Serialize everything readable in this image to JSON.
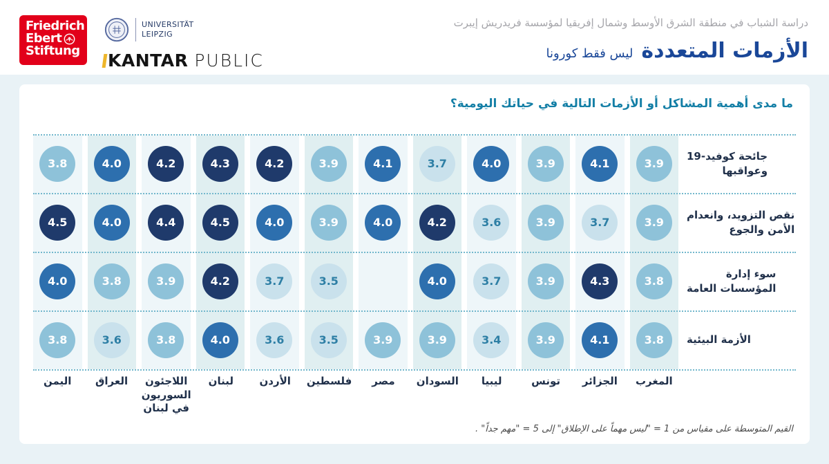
{
  "page": {
    "background": "#e9f2f6",
    "card_background": "#ffffff"
  },
  "header": {
    "fes_logo": {
      "line1": "Friedrich",
      "line2": "Ebert",
      "line3": "Stiftung",
      "bg_color": "#e2001a"
    },
    "leipzig_logo": {
      "line1": "UNIVERSITÄT",
      "line2": "LEIPZIG"
    },
    "kantar_logo": {
      "word1": "KANTAR",
      "word2": "PUBLIC",
      "accent_color": "#eeb62b"
    },
    "study_line": "دراسة الشباب في منطقة الشرق الأوسط وشمال إفريقيا لمؤسسة فريدريش إيبرت",
    "title": "الأزمات المتعددة",
    "subtitle": "ليس فقط كورونا",
    "title_color": "#1a4798"
  },
  "chart_data": {
    "type": "heatmap",
    "title": "ما مدى أهمية المشاكل أو الأزمات التالية في حياتك اليومية؟",
    "title_color": "#147fa6",
    "column_order": "visual-left-to-right",
    "columns": [
      "اليمن",
      "العراق",
      "اللاجئون\nالسوريون\nفي لبنان",
      "لبنان",
      "الأردن",
      "فلسطين",
      "مصر",
      "السودان",
      "ليبيا",
      "تونس",
      "الجزائر",
      "المغرب"
    ],
    "rows": [
      {
        "label": "جائحة كوفيد-19\nوعواقبها",
        "values": [
          3.8,
          4.0,
          4.2,
          4.3,
          4.2,
          3.9,
          4.1,
          3.7,
          4.0,
          3.9,
          4.1,
          3.9
        ]
      },
      {
        "label": "نقص التزويد، وانعدام\nالأمن والجوع",
        "values": [
          4.5,
          4.0,
          4.4,
          4.5,
          4.0,
          3.9,
          4.0,
          4.2,
          3.6,
          3.9,
          3.7,
          3.9
        ]
      },
      {
        "label": "سوء إدارة\nالمؤسسات العامة",
        "values": [
          4.0,
          3.8,
          3.9,
          4.2,
          3.7,
          3.5,
          null,
          4.0,
          3.7,
          3.9,
          4.3,
          3.8
        ]
      },
      {
        "label": "الأزمة البيئية",
        "values": [
          3.8,
          3.6,
          3.8,
          4.0,
          3.6,
          3.5,
          3.9,
          3.9,
          3.4,
          3.9,
          4.1,
          3.8
        ]
      }
    ],
    "scale": {
      "min": 1,
      "max": 5
    },
    "color_scale": [
      {
        "min": 4.2,
        "fill": "#1f3a6b",
        "text": "#ffffff"
      },
      {
        "min": 4.0,
        "fill": "#2d6fae",
        "text": "#ffffff"
      },
      {
        "min": 3.8,
        "fill": "#8ec2d9",
        "text": "#ffffff"
      },
      {
        "min": 0,
        "fill": "#c9e1ec",
        "text": "#2e7fa5"
      }
    ],
    "stripe_colors": [
      "#eef6f9",
      "#e0eff1"
    ],
    "dotline_color": "#72b7cc",
    "footnote": "القيم المتوسطة على مقياس من 1 = \"ليس مهماً على الإطلاق\" إلى 5 = \"مهم جداً\" ."
  }
}
